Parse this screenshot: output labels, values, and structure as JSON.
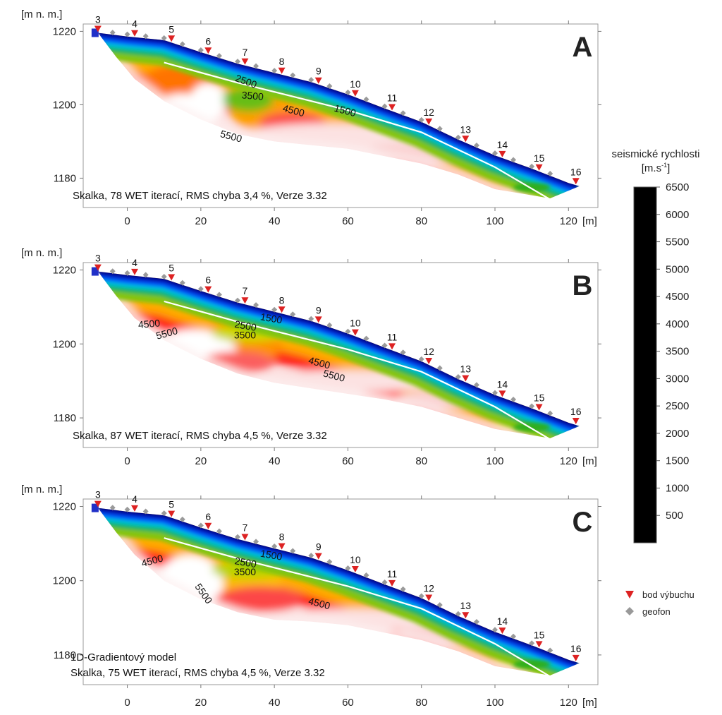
{
  "figure": {
    "colorbar": {
      "title": "seismické rychlosti",
      "unit_prefix": "[m.s",
      "unit_exp": "-1",
      "unit_suffix": "]",
      "ticks": [
        6500,
        6000,
        5500,
        5000,
        4500,
        4000,
        3500,
        3000,
        2500,
        2000,
        1500,
        1000,
        500
      ],
      "range": [
        0,
        6500
      ]
    },
    "legend": {
      "items": [
        {
          "symbol": "triangle-down",
          "color": "#dd2222",
          "label": "bod výbuchu"
        },
        {
          "symbol": "diamond",
          "color": "#999999",
          "label": "geofon"
        }
      ]
    },
    "colors": {
      "shot": "#dd2222",
      "geophone": "#9a9a9a",
      "stops": [
        "#000000",
        "#00008b",
        "#0022ff",
        "#00ccff",
        "#00b890",
        "#22aa22",
        "#c8d800",
        "#ffd000",
        "#ff8000",
        "#ff1a1a",
        "#f6a8a8",
        "#ffffff"
      ]
    }
  },
  "chart_data": [
    {
      "type": "heatmap",
      "panel_letter": "A",
      "caption_lines": [
        "Skalka, 78 WET iterací, RMS chyba 3,4 %, Verze 3.32"
      ],
      "ylabel": "[m n. m.]",
      "xlabel_unit": "[m]",
      "xlim": [
        -12,
        128
      ],
      "ylim": [
        1172,
        1222
      ],
      "xticks": [
        0,
        20,
        40,
        60,
        80,
        100,
        120
      ],
      "yticks": [
        1180,
        1200,
        1220
      ],
      "surface": [
        [
          -8,
          1219.6
        ],
        [
          0,
          1218.6
        ],
        [
          10,
          1217.6
        ],
        [
          20,
          1214.3
        ],
        [
          30,
          1211.2
        ],
        [
          40,
          1208.7
        ],
        [
          50,
          1206.2
        ],
        [
          60,
          1202.8
        ],
        [
          70,
          1199.0
        ],
        [
          80,
          1195.3
        ],
        [
          90,
          1190.5
        ],
        [
          100,
          1186.2
        ],
        [
          110,
          1182.6
        ],
        [
          120,
          1178.7
        ],
        [
          123,
          1177.8
        ]
      ],
      "bottom": [
        [
          123,
          1177.8
        ],
        [
          115,
          1174.5
        ],
        [
          100,
          1177
        ],
        [
          90,
          1181
        ],
        [
          80,
          1184
        ],
        [
          70,
          1186
        ],
        [
          60,
          1188
        ],
        [
          50,
          1189
        ],
        [
          40,
          1190
        ],
        [
          30,
          1192
        ],
        [
          20,
          1196
        ],
        [
          10,
          1201
        ],
        [
          2,
          1207
        ],
        [
          -3,
          1213
        ],
        [
          -8,
          1219.6
        ]
      ],
      "shots": [
        {
          "n": "3",
          "x": -8
        },
        {
          "n": "4",
          "x": 2
        },
        {
          "n": "5",
          "x": 12
        },
        {
          "n": "6",
          "x": 22
        },
        {
          "n": "7",
          "x": 32
        },
        {
          "n": "8",
          "x": 42
        },
        {
          "n": "9",
          "x": 52
        },
        {
          "n": "10",
          "x": 62
        },
        {
          "n": "11",
          "x": 72
        },
        {
          "n": "12",
          "x": 82
        },
        {
          "n": "13",
          "x": 92
        },
        {
          "n": "14",
          "x": 102
        },
        {
          "n": "15",
          "x": 112
        },
        {
          "n": "16",
          "x": 122
        }
      ],
      "geophones_x": [
        -4,
        0,
        5,
        10,
        15,
        20,
        25,
        30,
        35,
        40,
        45,
        50,
        55,
        60,
        65,
        70,
        75,
        80,
        85,
        90,
        95,
        100,
        105,
        110,
        115
      ],
      "white_line": [
        [
          10,
          1211.5
        ],
        [
          30,
          1206
        ],
        [
          60,
          1198.5
        ],
        [
          80,
          1192.5
        ],
        [
          100,
          1183
        ],
        [
          115,
          1174.2
        ]
      ],
      "contour_labels": [
        {
          "text": "2500",
          "x": 32,
          "y": 1205.5,
          "rot": 20
        },
        {
          "text": "3500",
          "x": 34,
          "y": 1201.5,
          "rot": 5
        },
        {
          "text": "4500",
          "x": 45,
          "y": 1197.5,
          "rot": 15
        },
        {
          "text": "1500",
          "x": 59,
          "y": 1197.5,
          "rot": 15
        },
        {
          "text": "5500",
          "x": 28,
          "y": 1190.5,
          "rot": 15
        }
      ],
      "bodies": [
        {
          "v": 4800,
          "x": 14,
          "y": 1205,
          "r": 11,
          "ry": 6
        },
        {
          "v": 6500,
          "x": 15,
          "y": 1197,
          "r": 9,
          "ry": 6
        },
        {
          "v": 6500,
          "x": 22,
          "y": 1201,
          "r": 5,
          "ry": 5
        },
        {
          "v": 4500,
          "x": 37,
          "y": 1198,
          "r": 9,
          "ry": 5
        },
        {
          "v": 3200,
          "x": 33,
          "y": 1201.5,
          "r": 7,
          "ry": 3.5
        },
        {
          "v": 5500,
          "x": 45,
          "y": 1195,
          "r": 9,
          "ry": 3
        },
        {
          "v": 6300,
          "x": 55,
          "y": 1191,
          "r": 25,
          "ry": 4
        },
        {
          "v": 6200,
          "x": 80,
          "y": 1187,
          "r": 15,
          "ry": 3
        },
        {
          "v": 3500,
          "x": 108,
          "y": 1180,
          "r": 5,
          "ry": 2
        },
        {
          "v": 4500,
          "x": 112,
          "y": 1177,
          "r": 3,
          "ry": 1.5
        }
      ]
    },
    {
      "type": "heatmap",
      "panel_letter": "B",
      "caption_lines": [
        "Skalka, 87 WET iterací, RMS chyba 4,5 %, Verze 3.32"
      ],
      "ylabel": "[m n. m.]",
      "xlabel_unit": "[m]",
      "xlim": [
        -12,
        128
      ],
      "ylim": [
        1172,
        1222
      ],
      "xticks": [
        0,
        20,
        40,
        60,
        80,
        100,
        120
      ],
      "yticks": [
        1180,
        1200,
        1220
      ],
      "surface": [
        [
          -8,
          1219.6
        ],
        [
          0,
          1218.6
        ],
        [
          10,
          1217.6
        ],
        [
          20,
          1214.3
        ],
        [
          30,
          1211.2
        ],
        [
          40,
          1208.7
        ],
        [
          50,
          1206.2
        ],
        [
          60,
          1202.8
        ],
        [
          70,
          1199.0
        ],
        [
          80,
          1195.3
        ],
        [
          90,
          1190.5
        ],
        [
          100,
          1186.2
        ],
        [
          110,
          1182.6
        ],
        [
          120,
          1178.7
        ],
        [
          123,
          1177.8
        ]
      ],
      "bottom": [
        [
          123,
          1177.8
        ],
        [
          115,
          1174.5
        ],
        [
          100,
          1177
        ],
        [
          90,
          1180
        ],
        [
          80,
          1183
        ],
        [
          70,
          1185
        ],
        [
          60,
          1186.5
        ],
        [
          50,
          1188
        ],
        [
          40,
          1189.5
        ],
        [
          30,
          1192
        ],
        [
          20,
          1196
        ],
        [
          10,
          1201
        ],
        [
          2,
          1207
        ],
        [
          -3,
          1213
        ],
        [
          -8,
          1219.6
        ]
      ],
      "shots": [
        {
          "n": "3",
          "x": -8
        },
        {
          "n": "4",
          "x": 2
        },
        {
          "n": "5",
          "x": 12
        },
        {
          "n": "6",
          "x": 22
        },
        {
          "n": "7",
          "x": 32
        },
        {
          "n": "8",
          "x": 42
        },
        {
          "n": "9",
          "x": 52
        },
        {
          "n": "10",
          "x": 62
        },
        {
          "n": "11",
          "x": 72
        },
        {
          "n": "12",
          "x": 82
        },
        {
          "n": "13",
          "x": 92
        },
        {
          "n": "14",
          "x": 102
        },
        {
          "n": "15",
          "x": 112
        },
        {
          "n": "16",
          "x": 122
        }
      ],
      "geophones_x": [
        -4,
        0,
        5,
        10,
        15,
        20,
        25,
        30,
        35,
        40,
        45,
        50,
        55,
        60,
        65,
        70,
        75,
        80,
        85,
        90,
        95,
        100,
        105,
        110,
        115
      ],
      "white_line": [
        [
          10,
          1211.5
        ],
        [
          30,
          1206
        ],
        [
          60,
          1198.5
        ],
        [
          80,
          1192.5
        ],
        [
          100,
          1183
        ],
        [
          115,
          1174.2
        ]
      ],
      "contour_labels": [
        {
          "text": "4500",
          "x": 6,
          "y": 1204.5,
          "rot": -5
        },
        {
          "text": "5500",
          "x": 11,
          "y": 1202,
          "rot": -15
        },
        {
          "text": "2500",
          "x": 32,
          "y": 1204,
          "rot": 10
        },
        {
          "text": "1500",
          "x": 39,
          "y": 1206,
          "rot": 10
        },
        {
          "text": "3500",
          "x": 32,
          "y": 1201.5,
          "rot": 0
        },
        {
          "text": "4500",
          "x": 52,
          "y": 1194,
          "rot": 15
        },
        {
          "text": "5500",
          "x": 56,
          "y": 1190.5,
          "rot": 15
        }
      ],
      "bodies": [
        {
          "v": 4600,
          "x": 30,
          "y": 1200,
          "r": 12,
          "ry": 6
        },
        {
          "v": 6500,
          "x": 18,
          "y": 1197,
          "r": 12,
          "ry": 7
        },
        {
          "v": 3600,
          "x": 33,
          "y": 1203,
          "r": 10,
          "ry": 2.5
        },
        {
          "v": 5600,
          "x": 30,
          "y": 1195,
          "r": 10,
          "ry": 3
        },
        {
          "v": 6300,
          "x": 60,
          "y": 1190,
          "r": 28,
          "ry": 3
        },
        {
          "v": 6200,
          "x": 85,
          "y": 1185,
          "r": 12,
          "ry": 2.5
        },
        {
          "v": 4000,
          "x": 105,
          "y": 1179,
          "r": 5,
          "ry": 1.5
        }
      ]
    },
    {
      "type": "heatmap",
      "panel_letter": "C",
      "caption_lines": [
        "1D-Gradientový model",
        "Skalka, 75 WET iterací, RMS chyba 4,5 %, Verze 3.32"
      ],
      "ylabel": "[m n. m.]",
      "xlabel_unit": "[m]",
      "xlim": [
        -12,
        128
      ],
      "ylim": [
        1172,
        1222
      ],
      "xticks": [
        0,
        20,
        40,
        60,
        80,
        100,
        120
      ],
      "yticks": [
        1180,
        1200,
        1220
      ],
      "surface": [
        [
          -8,
          1219.6
        ],
        [
          0,
          1218.6
        ],
        [
          10,
          1217.6
        ],
        [
          20,
          1214.3
        ],
        [
          30,
          1211.2
        ],
        [
          40,
          1208.7
        ],
        [
          50,
          1206.2
        ],
        [
          60,
          1202.8
        ],
        [
          70,
          1199.0
        ],
        [
          80,
          1195.3
        ],
        [
          90,
          1190.5
        ],
        [
          100,
          1186.2
        ],
        [
          110,
          1182.6
        ],
        [
          120,
          1178.7
        ],
        [
          123,
          1177.8
        ]
      ],
      "bottom": [
        [
          123,
          1177.8
        ],
        [
          115,
          1174.5
        ],
        [
          100,
          1177
        ],
        [
          90,
          1181
        ],
        [
          80,
          1184
        ],
        [
          70,
          1186
        ],
        [
          60,
          1188
        ],
        [
          50,
          1189
        ],
        [
          40,
          1189.5
        ],
        [
          30,
          1191.5
        ],
        [
          20,
          1195
        ],
        [
          10,
          1200
        ],
        [
          2,
          1207
        ],
        [
          -3,
          1213
        ],
        [
          -8,
          1219.6
        ]
      ],
      "shots": [
        {
          "n": "3",
          "x": -8
        },
        {
          "n": "4",
          "x": 2
        },
        {
          "n": "5",
          "x": 12
        },
        {
          "n": "6",
          "x": 22
        },
        {
          "n": "7",
          "x": 32
        },
        {
          "n": "8",
          "x": 42
        },
        {
          "n": "9",
          "x": 52
        },
        {
          "n": "10",
          "x": 62
        },
        {
          "n": "11",
          "x": 72
        },
        {
          "n": "12",
          "x": 82
        },
        {
          "n": "13",
          "x": 92
        },
        {
          "n": "14",
          "x": 102
        },
        {
          "n": "15",
          "x": 112
        },
        {
          "n": "16",
          "x": 122
        }
      ],
      "geophones_x": [
        -4,
        0,
        5,
        10,
        15,
        20,
        25,
        30,
        35,
        40,
        45,
        50,
        55,
        60,
        65,
        70,
        75,
        80,
        85,
        90,
        95,
        100,
        105,
        110,
        115
      ],
      "white_line": [
        [
          10,
          1211.5
        ],
        [
          30,
          1206
        ],
        [
          60,
          1198.5
        ],
        [
          80,
          1192.5
        ],
        [
          100,
          1183
        ],
        [
          115,
          1174.2
        ]
      ],
      "contour_labels": [
        {
          "text": "4500",
          "x": 7,
          "y": 1204.5,
          "rot": -15
        },
        {
          "text": "2500",
          "x": 32,
          "y": 1204,
          "rot": 10
        },
        {
          "text": "1500",
          "x": 39,
          "y": 1206,
          "rot": 10
        },
        {
          "text": "3500",
          "x": 32,
          "y": 1201.5,
          "rot": 0
        },
        {
          "text": "5500",
          "x": 20,
          "y": 1196,
          "rot": 55
        },
        {
          "text": "4500",
          "x": 52,
          "y": 1193,
          "rot": 15
        }
      ],
      "bodies": [
        {
          "v": 4300,
          "x": 30,
          "y": 1200,
          "r": 12,
          "ry": 6
        },
        {
          "v": 6500,
          "x": 17,
          "y": 1199,
          "r": 9,
          "ry": 8
        },
        {
          "v": 3500,
          "x": 33,
          "y": 1203,
          "r": 10,
          "ry": 2.5
        },
        {
          "v": 5500,
          "x": 36,
          "y": 1195,
          "r": 12,
          "ry": 3.5
        },
        {
          "v": 6300,
          "x": 60,
          "y": 1189.5,
          "r": 28,
          "ry": 3
        },
        {
          "v": 6200,
          "x": 85,
          "y": 1185.5,
          "r": 12,
          "ry": 2.5
        },
        {
          "v": 4000,
          "x": 105,
          "y": 1179,
          "r": 5,
          "ry": 1.5
        }
      ]
    }
  ]
}
